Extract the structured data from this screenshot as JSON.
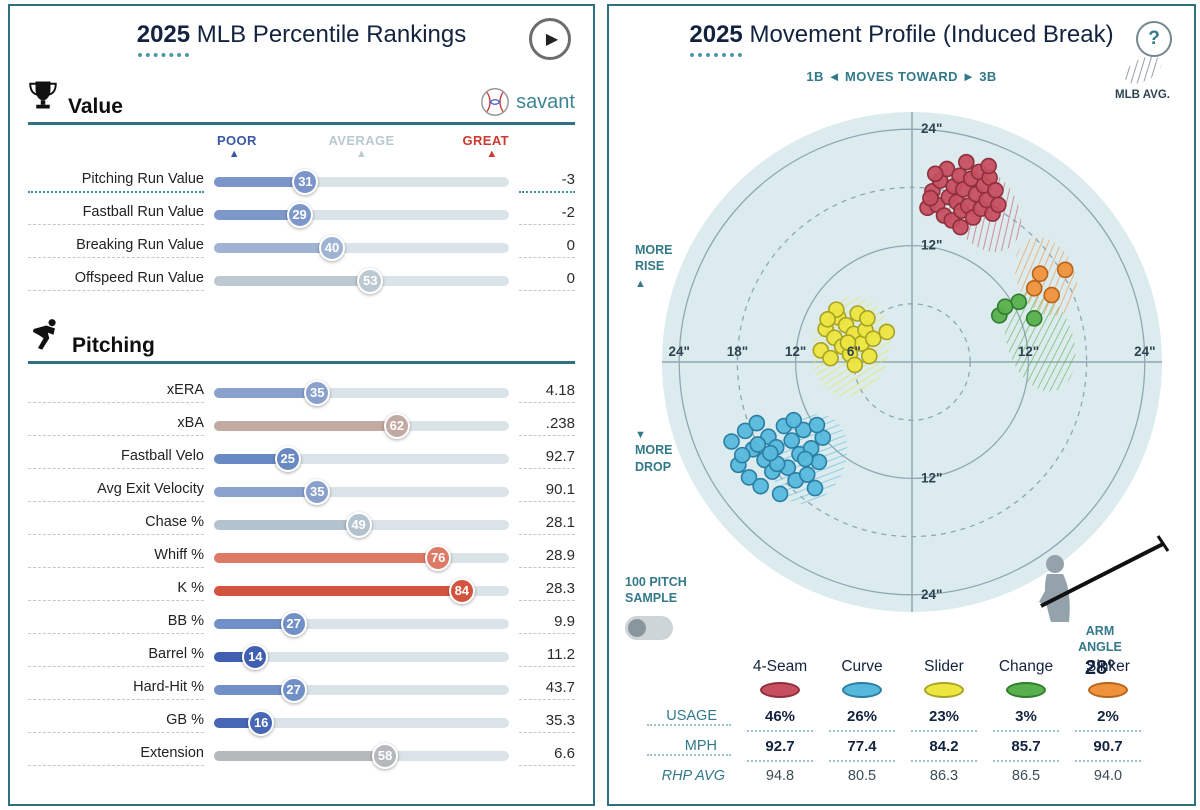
{
  "colors": {
    "teal": "#33798a",
    "navy_text": "#13233f",
    "border": "#2f7180",
    "track": "#dae4e8",
    "plot_bg": "#dcebee",
    "grid": "#8fa7b2",
    "dots": "#4c9aa8"
  },
  "icons": {
    "play": "▶",
    "help": "?",
    "triangle_up": "▲",
    "triangle_down": "▼"
  },
  "left_panel": {
    "title_year": "2025",
    "title_rest": " MLB Percentile Rankings",
    "section_value": "Value",
    "section_pitching": "Pitching",
    "brand": "savant",
    "scale_poor": "POOR",
    "scale_avg": "AVERAGE",
    "scale_great": "GREAT"
  },
  "right_panel": {
    "title_year": "2025",
    "title_rest": " Movement Profile (Induced Break)",
    "axis_header": "1B ◄ MOVES TOWARD ► 3B",
    "mlb_avg": "MLB AVG.",
    "more_rise": "MORE RISE",
    "more_drop": "MORE DROP",
    "sample_label": "100 PITCH SAMPLE",
    "arm_label": "ARM ANGLE",
    "arm_value": "28°",
    "table": {
      "labels": {
        "usage": "USAGE",
        "mph": "MPH",
        "rhp": "RHP AVG"
      },
      "pitches": [
        {
          "name": "4-Seam",
          "fill": "#c64f60",
          "stroke": "#8e2f3c",
          "usage": "46%",
          "mph": "92.7",
          "rhp": "94.8"
        },
        {
          "name": "Curve",
          "fill": "#56b9dc",
          "stroke": "#2b7ea3",
          "usage": "26%",
          "mph": "77.4",
          "rhp": "80.5"
        },
        {
          "name": "Slider",
          "fill": "#ece63e",
          "stroke": "#a8a224",
          "usage": "23%",
          "mph": "84.2",
          "rhp": "86.3"
        },
        {
          "name": "Change",
          "fill": "#57b04b",
          "stroke": "#2f7d2e",
          "usage": "3%",
          "mph": "85.7",
          "rhp": "86.5"
        },
        {
          "name": "Sinker",
          "fill": "#f0923c",
          "stroke": "#b5641c",
          "usage": "2%",
          "mph": "90.7",
          "rhp": "94.0"
        }
      ]
    }
  },
  "chart_data": [
    {
      "type": "bar",
      "title": "2025 MLB Percentile Rankings",
      "scale": [
        "POOR",
        "AVERAGE",
        "GREAT"
      ],
      "xlim": [
        0,
        100
      ],
      "groups": [
        {
          "name": "Value",
          "rows": [
            {
              "label": "Pitching Run Value",
              "percentile": 31,
              "value": "-3",
              "color": "#7b94c9",
              "highlight": true
            },
            {
              "label": "Fastball Run Value",
              "percentile": 29,
              "value": "-2",
              "color": "#7e97ca"
            },
            {
              "label": "Breaking Run Value",
              "percentile": 40,
              "value": "0",
              "color": "#9fb3d2"
            },
            {
              "label": "Offspeed Run Value",
              "percentile": 53,
              "value": "0",
              "color": "#bcc9d1"
            }
          ]
        },
        {
          "name": "Pitching",
          "rows": [
            {
              "label": "xERA",
              "percentile": 35,
              "value": "4.18",
              "color": "#8aa1cd"
            },
            {
              "label": "xBA",
              "percentile": 62,
              "value": ".238",
              "color": "#c2a9a1"
            },
            {
              "label": "Fastball Velo",
              "percentile": 25,
              "value": "92.7",
              "color": "#6989c3"
            },
            {
              "label": "Avg Exit Velocity",
              "percentile": 35,
              "value": "90.1",
              "color": "#8aa1cd"
            },
            {
              "label": "Chase %",
              "percentile": 49,
              "value": "28.1",
              "color": "#b3c2cf"
            },
            {
              "label": "Whiff %",
              "percentile": 76,
              "value": "28.9",
              "color": "#dd7a66"
            },
            {
              "label": "K %",
              "percentile": 84,
              "value": "28.3",
              "color": "#d2543e"
            },
            {
              "label": "BB %",
              "percentile": 27,
              "value": "9.9",
              "color": "#7190c7"
            },
            {
              "label": "Barrel %",
              "percentile": 14,
              "value": "11.2",
              "color": "#405fb2"
            },
            {
              "label": "Hard-Hit %",
              "percentile": 27,
              "value": "43.7",
              "color": "#7190c7"
            },
            {
              "label": "GB %",
              "percentile": 16,
              "value": "35.3",
              "color": "#4767b6"
            },
            {
              "label": "Extension",
              "percentile": 58,
              "value": "6.6",
              "color": "#b4b9bb"
            }
          ]
        }
      ]
    },
    {
      "type": "scatter",
      "title": "2025 Movement Profile (Induced Break)",
      "units": "inches",
      "xlim": [
        -26,
        26
      ],
      "ylim": [
        -26,
        26
      ],
      "rings": [
        {
          "r": 6,
          "style": "dashed"
        },
        {
          "r": 12,
          "style": "solid"
        },
        {
          "r": 18,
          "style": "dashed"
        },
        {
          "r": 24,
          "style": "solid"
        }
      ],
      "x_tick_labels": [
        {
          "v": -24,
          "t": "24\""
        },
        {
          "v": -18,
          "t": "18\""
        },
        {
          "v": -12,
          "t": "12\""
        },
        {
          "v": -6,
          "t": "6\""
        },
        {
          "v": 12,
          "t": "12\""
        },
        {
          "v": 24,
          "t": "24\""
        }
      ],
      "y_tick_labels": [
        {
          "v": 24,
          "t": "24\""
        },
        {
          "v": 12,
          "t": "12\""
        },
        {
          "v": -12,
          "t": "12\""
        },
        {
          "v": -24,
          "t": "24\""
        }
      ],
      "arm_angle_deg": 28,
      "series": [
        {
          "name": "4-Seam",
          "fill": "#c64f60",
          "stroke": "#8e2f3c",
          "points": [
            [
              1.6,
              15.9
            ],
            [
              2.1,
              17.6
            ],
            [
              2.6,
              16.2
            ],
            [
              2.9,
              18.7
            ],
            [
              3.3,
              15.1
            ],
            [
              3.6,
              19.9
            ],
            [
              3.8,
              17.0
            ],
            [
              4.1,
              14.6
            ],
            [
              4.3,
              18.1
            ],
            [
              4.6,
              16.5
            ],
            [
              4.9,
              19.2
            ],
            [
              5.1,
              15.6
            ],
            [
              5.3,
              17.8
            ],
            [
              5.6,
              20.6
            ],
            [
              5.8,
              16.1
            ],
            [
              6.1,
              18.9
            ],
            [
              6.3,
              14.9
            ],
            [
              6.6,
              17.3
            ],
            [
              6.9,
              19.6
            ],
            [
              7.1,
              15.8
            ],
            [
              7.4,
              18.2
            ],
            [
              7.7,
              16.7
            ],
            [
              8.0,
              19.0
            ],
            [
              8.3,
              15.3
            ],
            [
              8.6,
              17.7
            ],
            [
              8.9,
              16.2
            ],
            [
              2.4,
              19.4
            ],
            [
              1.9,
              16.9
            ],
            [
              7.9,
              20.2
            ],
            [
              5.0,
              13.9
            ]
          ]
        },
        {
          "name": "Curve",
          "fill": "#56b9dc",
          "stroke": "#2b7ea3",
          "points": [
            [
              -18.6,
              -8.2
            ],
            [
              -17.9,
              -10.6
            ],
            [
              -17.2,
              -7.1
            ],
            [
              -16.8,
              -11.9
            ],
            [
              -16.4,
              -9.0
            ],
            [
              -16.0,
              -6.3
            ],
            [
              -15.6,
              -12.8
            ],
            [
              -15.2,
              -10.1
            ],
            [
              -14.8,
              -7.7
            ],
            [
              -14.4,
              -11.3
            ],
            [
              -14.0,
              -8.8
            ],
            [
              -13.6,
              -13.6
            ],
            [
              -13.2,
              -6.6
            ],
            [
              -12.8,
              -10.9
            ],
            [
              -12.4,
              -8.1
            ],
            [
              -12.0,
              -12.2
            ],
            [
              -11.6,
              -9.5
            ],
            [
              -11.2,
              -7.0
            ],
            [
              -10.8,
              -11.6
            ],
            [
              -10.4,
              -8.9
            ],
            [
              -10.0,
              -13.0
            ],
            [
              -9.6,
              -10.3
            ],
            [
              -9.2,
              -7.8
            ],
            [
              -15.9,
              -8.5
            ],
            [
              -13.9,
              -10.5
            ],
            [
              -12.2,
              -6.0
            ],
            [
              -17.5,
              -9.6
            ],
            [
              -11.0,
              -10.0
            ],
            [
              -14.6,
              -9.4
            ],
            [
              -9.8,
              -6.5
            ]
          ]
        },
        {
          "name": "Slider",
          "fill": "#ece63e",
          "stroke": "#a8a224",
          "points": [
            [
              -9.4,
              1.2
            ],
            [
              -8.9,
              3.4
            ],
            [
              -8.4,
              0.4
            ],
            [
              -8.0,
              2.5
            ],
            [
              -7.6,
              4.6
            ],
            [
              -7.2,
              1.6
            ],
            [
              -6.8,
              3.8
            ],
            [
              -6.4,
              0.8
            ],
            [
              -6.0,
              2.9
            ],
            [
              -5.6,
              5.0
            ],
            [
              -5.2,
              1.9
            ],
            [
              -4.8,
              3.3
            ],
            [
              -4.4,
              0.6
            ],
            [
              -4.0,
              2.4
            ],
            [
              -7.8,
              5.4
            ],
            [
              -5.9,
              -0.3
            ],
            [
              -2.6,
              3.1
            ],
            [
              -8.7,
              4.4
            ],
            [
              -4.6,
              4.5
            ],
            [
              -6.6,
              2.0
            ]
          ]
        },
        {
          "name": "Change",
          "fill": "#57b04b",
          "stroke": "#2f7d2e",
          "points": [
            [
              9.0,
              4.8
            ],
            [
              11.0,
              6.2
            ],
            [
              12.6,
              4.5
            ],
            [
              9.6,
              5.7
            ]
          ]
        },
        {
          "name": "Sinker",
          "fill": "#f0923c",
          "stroke": "#b5641c",
          "points": [
            [
              13.2,
              9.1
            ],
            [
              15.8,
              9.5
            ],
            [
              14.4,
              6.9
            ],
            [
              12.6,
              7.6
            ]
          ]
        }
      ],
      "mlb_avg_ellipses": [
        {
          "pitch": "4-Seam",
          "cx": 7.4,
          "cy": 15.8,
          "rx": 3.4,
          "ry": 4.8,
          "rotate": -32
        },
        {
          "pitch": "Curve",
          "cx": -10.5,
          "cy": -10.0,
          "rx": 3.6,
          "ry": 4.8,
          "rotate": 24
        },
        {
          "pitch": "Slider",
          "cx": -6.3,
          "cy": 1.6,
          "rx": 4.0,
          "ry": 5.2,
          "rotate": 12
        },
        {
          "pitch": "Change",
          "cx": 13.2,
          "cy": 2.2,
          "rx": 3.4,
          "ry": 5.4,
          "rotate": -18
        },
        {
          "pitch": "Sinker",
          "cx": 13.8,
          "cy": 8.8,
          "rx": 3.0,
          "ry": 4.2,
          "rotate": -22
        }
      ]
    }
  ]
}
